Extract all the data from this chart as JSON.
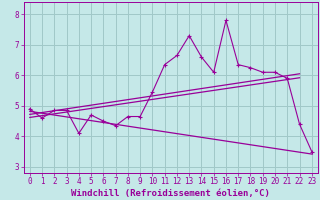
{
  "xlabel": "Windchill (Refroidissement éolien,°C)",
  "bg_color": "#c5e8e8",
  "line_color": "#990099",
  "grid_color": "#a0c8c8",
  "xlim": [
    -0.5,
    23.5
  ],
  "ylim": [
    2.8,
    8.4
  ],
  "yticks": [
    3,
    4,
    5,
    6,
    7,
    8
  ],
  "xticks": [
    0,
    1,
    2,
    3,
    4,
    5,
    6,
    7,
    8,
    9,
    10,
    11,
    12,
    13,
    14,
    15,
    16,
    17,
    18,
    19,
    20,
    21,
    22,
    23
  ],
  "scatter_x": [
    0,
    1,
    2,
    3,
    4,
    5,
    6,
    7,
    8,
    9,
    10,
    11,
    12,
    13,
    14,
    15,
    16,
    17,
    18,
    19,
    20,
    21,
    22,
    23
  ],
  "scatter_y": [
    4.9,
    4.6,
    4.85,
    4.85,
    4.1,
    4.7,
    4.5,
    4.35,
    4.65,
    4.65,
    5.45,
    6.35,
    6.65,
    7.3,
    6.6,
    6.1,
    7.8,
    6.35,
    6.25,
    6.1,
    6.1,
    5.9,
    4.4,
    3.5
  ],
  "line1_x": [
    0,
    22
  ],
  "line1_y": [
    4.72,
    6.05
  ],
  "line2_x": [
    0,
    22
  ],
  "line2_y": [
    4.62,
    5.92
  ],
  "line3_x": [
    0,
    23
  ],
  "line3_y": [
    4.82,
    3.42
  ],
  "tick_fontsize": 5.5,
  "label_fontsize": 6.5
}
